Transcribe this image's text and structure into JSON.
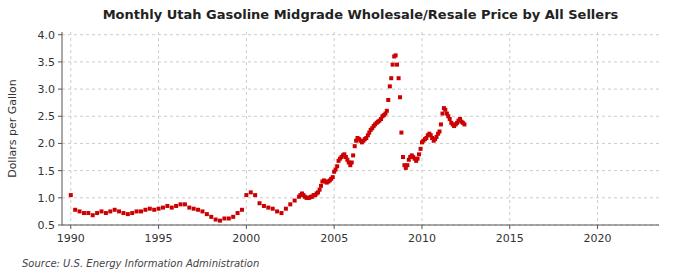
{
  "chart_data": {
    "type": "scatter",
    "title": "Monthly Utah Gasoline Midgrade Wholesale/Resale Price by All Sellers",
    "y_label": "Dollars per Gallon",
    "annotations": [
      "Source: U.S. Energy Information Administration"
    ],
    "color": "#cc0000",
    "marker": "square",
    "grid": true,
    "xlim": [
      1989.5,
      2023.5
    ],
    "ylim": [
      0.5,
      4.05
    ],
    "xticks": [
      1990,
      1995,
      2000,
      2005,
      2010,
      2015,
      2020
    ],
    "yticks": [
      0.5,
      {
        "value": 1.0,
        "label": "1.0"
      },
      1.5,
      {
        "value": 2.0,
        "label": "2.0"
      },
      2.5,
      {
        "value": 3.0,
        "label": "3.0"
      },
      3.5,
      {
        "value": 4.0,
        "label": "4.0"
      }
    ],
    "x": [
      1990.0,
      1990.25,
      1990.5,
      1990.75,
      1991.0,
      1991.25,
      1991.5,
      1991.75,
      1992.0,
      1992.25,
      1992.5,
      1992.75,
      1993.0,
      1993.25,
      1993.5,
      1993.75,
      1994.0,
      1994.25,
      1994.5,
      1994.75,
      1995.0,
      1995.25,
      1995.5,
      1995.75,
      1996.0,
      1996.25,
      1996.5,
      1996.75,
      1997.0,
      1997.25,
      1997.5,
      1997.75,
      1998.0,
      1998.25,
      1998.5,
      1998.75,
      1999.0,
      1999.25,
      1999.5,
      1999.75,
      2000.0,
      2000.25,
      2000.5,
      2000.75,
      2001.0,
      2001.25,
      2001.5,
      2001.75,
      2002.0,
      2002.25,
      2002.5,
      2002.75,
      2003.0,
      2003.08,
      2003.17,
      2003.25,
      2003.33,
      2003.42,
      2003.5,
      2003.58,
      2003.67,
      2003.75,
      2003.83,
      2003.92,
      2004.0,
      2004.08,
      2004.17,
      2004.25,
      2004.33,
      2004.42,
      2004.5,
      2004.58,
      2004.67,
      2004.75,
      2004.83,
      2004.92,
      2005.0,
      2005.08,
      2005.17,
      2005.25,
      2005.33,
      2005.42,
      2005.5,
      2005.58,
      2005.67,
      2005.75,
      2005.83,
      2005.92,
      2006.0,
      2006.08,
      2006.17,
      2006.25,
      2006.33,
      2006.42,
      2006.5,
      2006.58,
      2006.67,
      2006.75,
      2006.83,
      2006.92,
      2007.0,
      2007.08,
      2007.17,
      2007.25,
      2007.33,
      2007.42,
      2007.5,
      2007.58,
      2007.67,
      2007.75,
      2007.83,
      2007.92,
      2008.0,
      2008.08,
      2008.17,
      2008.25,
      2008.33,
      2008.42,
      2008.5,
      2008.58,
      2008.67,
      2008.75,
      2008.83,
      2008.92,
      2009.0,
      2009.08,
      2009.17,
      2009.25,
      2009.33,
      2009.42,
      2009.5,
      2009.58,
      2009.67,
      2009.75,
      2009.83,
      2009.92,
      2010.0,
      2010.08,
      2010.17,
      2010.25,
      2010.33,
      2010.42,
      2010.5,
      2010.58,
      2010.67,
      2010.75,
      2010.83,
      2010.92,
      2011.0,
      2011.08,
      2011.17,
      2011.25,
      2011.33,
      2011.42,
      2011.5,
      2011.58,
      2011.67,
      2011.75,
      2011.83,
      2011.92,
      2012.0,
      2012.08,
      2012.17,
      2012.25,
      2012.33,
      2012.42
    ],
    "values": [
      1.05,
      0.78,
      0.75,
      0.72,
      0.72,
      0.68,
      0.72,
      0.75,
      0.72,
      0.75,
      0.78,
      0.75,
      0.72,
      0.7,
      0.72,
      0.75,
      0.75,
      0.78,
      0.8,
      0.78,
      0.8,
      0.82,
      0.85,
      0.82,
      0.85,
      0.88,
      0.88,
      0.82,
      0.8,
      0.78,
      0.75,
      0.7,
      0.65,
      0.6,
      0.58,
      0.62,
      0.62,
      0.65,
      0.72,
      0.78,
      1.05,
      1.1,
      1.05,
      0.9,
      0.85,
      0.82,
      0.8,
      0.75,
      0.72,
      0.8,
      0.88,
      0.95,
      1.02,
      1.05,
      1.08,
      1.05,
      1.02,
      1.0,
      1.0,
      1.0,
      1.02,
      1.02,
      1.05,
      1.05,
      1.08,
      1.1,
      1.15,
      1.22,
      1.3,
      1.32,
      1.3,
      1.28,
      1.3,
      1.32,
      1.35,
      1.38,
      1.48,
      1.52,
      1.58,
      1.68,
      1.72,
      1.75,
      1.78,
      1.8,
      1.75,
      1.7,
      1.65,
      1.6,
      1.65,
      1.78,
      1.95,
      2.05,
      2.1,
      2.08,
      2.05,
      2.02,
      2.05,
      2.08,
      2.1,
      2.15,
      2.2,
      2.25,
      2.28,
      2.32,
      2.35,
      2.38,
      2.4,
      2.42,
      2.45,
      2.5,
      2.52,
      2.55,
      2.6,
      2.8,
      3.05,
      3.2,
      3.45,
      3.6,
      3.62,
      3.45,
      3.2,
      2.85,
      2.2,
      1.75,
      1.6,
      1.55,
      1.6,
      1.7,
      1.75,
      1.78,
      1.75,
      1.72,
      1.68,
      1.72,
      1.8,
      1.9,
      2.02,
      2.05,
      2.08,
      2.1,
      2.15,
      2.18,
      2.15,
      2.1,
      2.05,
      2.08,
      2.12,
      2.18,
      2.22,
      2.35,
      2.55,
      2.65,
      2.62,
      2.55,
      2.5,
      2.45,
      2.38,
      2.35,
      2.32,
      2.35,
      2.38,
      2.42,
      2.45,
      2.4,
      2.38,
      2.35
    ]
  }
}
